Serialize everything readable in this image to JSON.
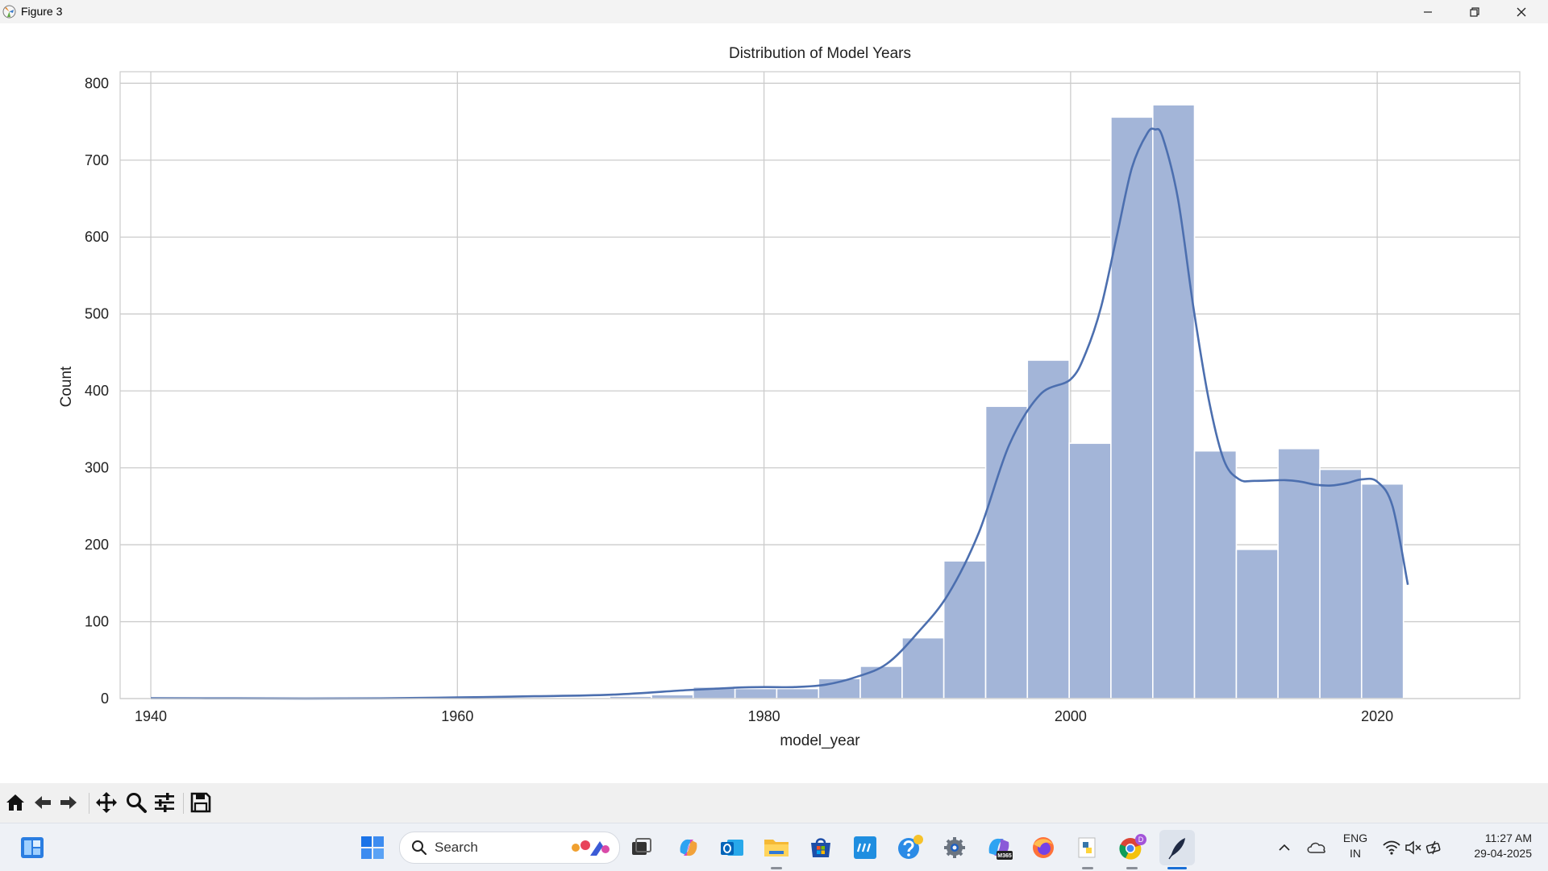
{
  "window": {
    "title": "Figure 3"
  },
  "chart_data": {
    "type": "bar",
    "title": "Distribution of Model Years",
    "xlabel": "model_year",
    "ylabel": "Count",
    "xlim": [
      1938,
      2029.3
    ],
    "ylim": [
      0,
      815
    ],
    "x_ticks": [
      1940,
      1960,
      1980,
      2000,
      2020
    ],
    "y_ticks": [
      0,
      100,
      200,
      300,
      400,
      500,
      600,
      700,
      800
    ],
    "grid": true,
    "bar_color": "#a3b5d8",
    "line_color": "#4c6faf",
    "bins": [
      {
        "x0": 1940.0,
        "x1": 1942.73,
        "count": 1
      },
      {
        "x0": 1969.93,
        "x1": 1972.66,
        "count": 3
      },
      {
        "x0": 1972.66,
        "x1": 1975.38,
        "count": 5
      },
      {
        "x0": 1975.38,
        "x1": 1978.11,
        "count": 15
      },
      {
        "x0": 1978.11,
        "x1": 1980.83,
        "count": 13
      },
      {
        "x0": 1980.83,
        "x1": 1983.56,
        "count": 13
      },
      {
        "x0": 1983.56,
        "x1": 1986.28,
        "count": 26
      },
      {
        "x0": 1986.28,
        "x1": 1989.01,
        "count": 42
      },
      {
        "x0": 1989.01,
        "x1": 1991.73,
        "count": 79
      },
      {
        "x0": 1991.73,
        "x1": 1994.46,
        "count": 179
      },
      {
        "x0": 1994.46,
        "x1": 1997.18,
        "count": 380
      },
      {
        "x0": 1997.18,
        "x1": 1999.91,
        "count": 440
      },
      {
        "x0": 1999.91,
        "x1": 2002.63,
        "count": 332
      },
      {
        "x0": 2002.63,
        "x1": 2005.36,
        "count": 756
      },
      {
        "x0": 2005.36,
        "x1": 2008.08,
        "count": 772
      },
      {
        "x0": 2008.08,
        "x1": 2010.81,
        "count": 322
      },
      {
        "x0": 2010.81,
        "x1": 2013.53,
        "count": 194
      },
      {
        "x0": 2013.53,
        "x1": 2016.26,
        "count": 325
      },
      {
        "x0": 2016.26,
        "x1": 2018.98,
        "count": 298
      },
      {
        "x0": 2018.98,
        "x1": 2021.71,
        "count": 279
      }
    ],
    "kde": {
      "x": [
        1940,
        1945,
        1950,
        1955,
        1960,
        1965,
        1970,
        1975,
        1978,
        1980,
        1982,
        1984,
        1986,
        1988,
        1990,
        1992,
        1994,
        1996,
        1998,
        2000,
        2001,
        2002,
        2003,
        2004,
        2005,
        2005.5,
        2006,
        2007,
        2008,
        2009,
        2010,
        2011,
        2012,
        2014,
        2015,
        2016,
        2017,
        2018,
        2019,
        2020,
        2021,
        2022
      ],
      "y": [
        0.5,
        0.3,
        0.1,
        0.3,
        1.5,
        3,
        5,
        11,
        14,
        15,
        15,
        18,
        28,
        45,
        85,
        135,
        215,
        330,
        395,
        415,
        450,
        510,
        600,
        690,
        735,
        740,
        730,
        650,
        510,
        390,
        310,
        285,
        283,
        284,
        282,
        278,
        277,
        280,
        285,
        282,
        250,
        148
      ]
    }
  },
  "toolbar": {
    "buttons": [
      "home-icon",
      "back-icon",
      "forward-icon",
      "pan-icon",
      "zoom-icon",
      "configure-icon",
      "save-icon"
    ]
  },
  "taskbar": {
    "search_label": "Search",
    "lang_line1": "ENG",
    "lang_line2": "IN",
    "time": "11:27 AM",
    "date": "29-04-2025"
  }
}
